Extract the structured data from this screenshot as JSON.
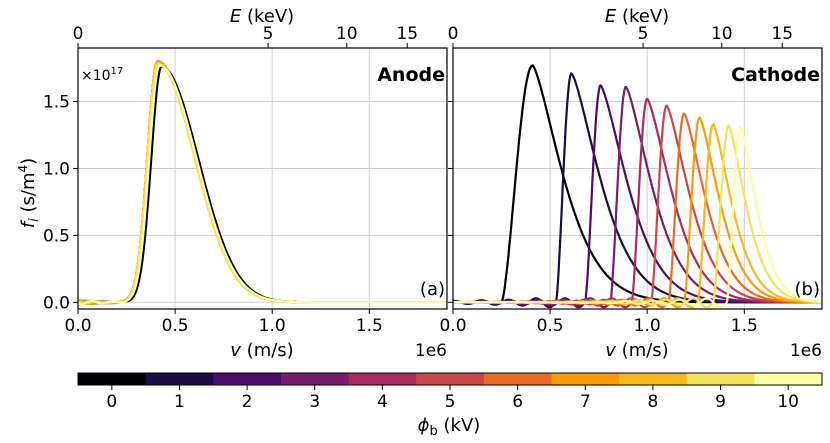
{
  "chart_data": [
    {
      "type": "line",
      "panel": "a",
      "title": "Anode",
      "panel_tag": "(a)",
      "xlabel": "v (m/s)",
      "x_offset": "1e6",
      "ylabel": "f_i (s/m^4)",
      "y_offset": "×10^17",
      "xlim": [
        0,
        1.9
      ],
      "ylim": [
        -0.05,
        1.9
      ],
      "yscale": 1e+17,
      "xticks": [
        "0.0",
        "0.5",
        "1.0",
        "1.5"
      ],
      "yticks": [
        "0.0",
        "0.5",
        "1.0",
        "1.5"
      ],
      "top_axis": {
        "label": "E (keV)",
        "ticks": [
          "0",
          "5",
          "10",
          "15"
        ]
      },
      "series": [
        {
          "name": "0 kV",
          "peak_v": 0.43,
          "peak_f": 1.76
        },
        {
          "name": "1 kV",
          "peak_v": 0.415,
          "peak_f": 1.78
        },
        {
          "name": "2 kV",
          "peak_v": 0.41,
          "peak_f": 1.79
        },
        {
          "name": "3 kV",
          "peak_v": 0.41,
          "peak_f": 1.8
        },
        {
          "name": "4 kV",
          "peak_v": 0.41,
          "peak_f": 1.8
        },
        {
          "name": "5 kV",
          "peak_v": 0.41,
          "peak_f": 1.8
        },
        {
          "name": "6 kV",
          "peak_v": 0.41,
          "peak_f": 1.8
        },
        {
          "name": "7 kV",
          "peak_v": 0.41,
          "peak_f": 1.8
        },
        {
          "name": "8 kV",
          "peak_v": 0.41,
          "peak_f": 1.79
        },
        {
          "name": "9 kV",
          "peak_v": 0.41,
          "peak_f": 1.78
        },
        {
          "name": "10 kV",
          "peak_v": 0.42,
          "peak_f": 1.77
        }
      ]
    },
    {
      "type": "line",
      "panel": "b",
      "title": "Cathode",
      "panel_tag": "(b)",
      "xlabel": "v (m/s)",
      "x_offset": "1e6",
      "xlim": [
        0,
        1.9
      ],
      "ylim": [
        -0.05,
        1.9
      ],
      "xticks": [
        "0.0",
        "0.5",
        "1.0",
        "1.5"
      ],
      "top_axis": {
        "label": "E (keV)",
        "ticks": [
          "0",
          "5",
          "10",
          "15"
        ]
      },
      "series": [
        {
          "name": "0 kV",
          "peak_v": 0.41,
          "peak_f": 1.77,
          "onset_v": 0.25
        },
        {
          "name": "1 kV",
          "peak_v": 0.61,
          "peak_f": 1.71,
          "onset_v": 0.53
        },
        {
          "name": "2 kV",
          "peak_v": 0.76,
          "peak_f": 1.62,
          "onset_v": 0.68
        },
        {
          "name": "3 kV",
          "peak_v": 0.89,
          "peak_f": 1.61,
          "onset_v": 0.81
        },
        {
          "name": "4 kV",
          "peak_v": 1.0,
          "peak_f": 1.52,
          "onset_v": 0.92
        },
        {
          "name": "5 kV",
          "peak_v": 1.1,
          "peak_f": 1.47,
          "onset_v": 1.02
        },
        {
          "name": "6 kV",
          "peak_v": 1.19,
          "peak_f": 1.41,
          "onset_v": 1.11
        },
        {
          "name": "7 kV",
          "peak_v": 1.27,
          "peak_f": 1.38,
          "onset_v": 1.19
        },
        {
          "name": "8 kV",
          "peak_v": 1.34,
          "peak_f": 1.33,
          "onset_v": 1.26
        },
        {
          "name": "9 kV",
          "peak_v": 1.42,
          "peak_f": 1.32,
          "onset_v": 1.34
        },
        {
          "name": "10 kV",
          "peak_v": 1.48,
          "peak_f": 1.31,
          "onset_v": 1.41
        }
      ]
    }
  ],
  "colorbar": {
    "label": "ϕ_b (kV)",
    "ticks": [
      "0",
      "1",
      "2",
      "3",
      "4",
      "5",
      "6",
      "7",
      "8",
      "9",
      "10"
    ],
    "colors": [
      "#000004",
      "#1b0c41",
      "#4a0c6b",
      "#781c6d",
      "#a52c60",
      "#cf4446",
      "#ed6925",
      "#fb9b06",
      "#f7d13d",
      "#fcffa4",
      "#fcffa4"
    ]
  },
  "series_colors": [
    "#000004",
    "#1b0c41",
    "#4a0c6b",
    "#781c6d",
    "#a52c60",
    "#cf4446",
    "#ed6925",
    "#fb9b06",
    "#fbb61a",
    "#f3e35a",
    "#fcffa4"
  ],
  "labels": {
    "ylabel_f": "f",
    "ylabel_sub": "i",
    "ylabel_unit": " (s/m",
    "ylabel_pow": "4",
    "ylabel_close": ")",
    "offset_base": "×10",
    "offset_pow": "17",
    "xlabel_v": "v",
    "xlabel_unit": " (m/s)",
    "e_label_E": "E",
    "e_label_unit": " (keV)",
    "x_scale": "1e6",
    "cb_phi": "ϕ",
    "cb_sub": "b",
    "cb_unit": " (kV)"
  }
}
